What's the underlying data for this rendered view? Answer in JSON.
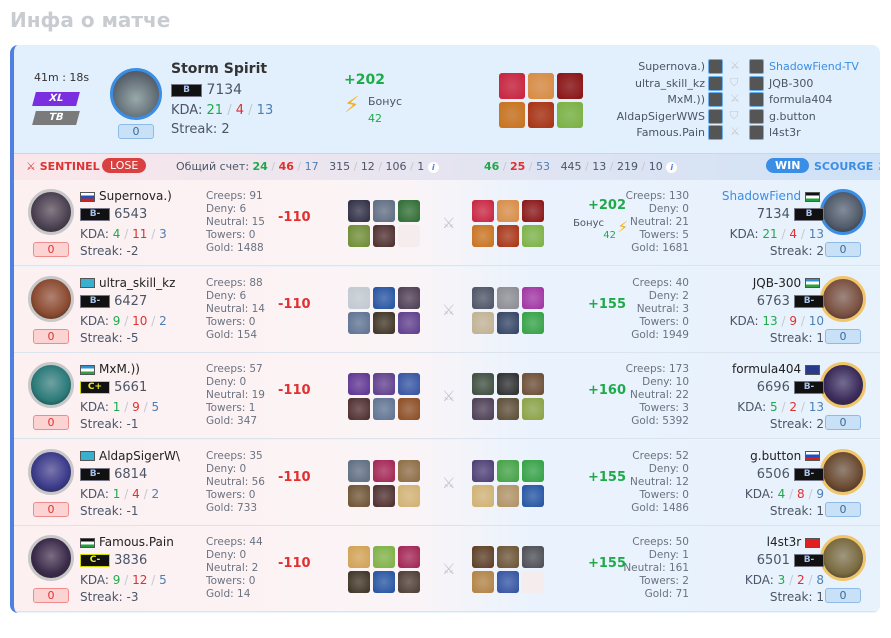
{
  "page_title": "Инфа о матче",
  "match": {
    "duration": "41m : 18s",
    "modes": [
      "XL",
      "TB"
    ],
    "mode_colors": [
      "#7a2ee0",
      "#7a7a7a"
    ]
  },
  "mvp": {
    "hero": "Storm Spirit",
    "rank": "B",
    "rating": "7134",
    "kda": [
      "21",
      "4",
      "13"
    ],
    "kda_label": "KDA:",
    "streak": "Streak: 2",
    "counter": "0",
    "delta": "+202",
    "bonus_label": "Бонус",
    "bonus": "42",
    "items": [
      "#c8203a",
      "#d88a40",
      "#8a1010",
      "#c8701a",
      "#a83010",
      "#7ab040"
    ]
  },
  "lineup": [
    {
      "left": "Supernova.)",
      "right": "ShadowFiend-TV",
      "right_highlight": true,
      "icon": "crossed-swords-icon"
    },
    {
      "left": "ultra_skill_kz",
      "right": "JQB-300",
      "icon": "shield-icon"
    },
    {
      "left": "MxM.))",
      "right": "formula404",
      "icon": "crossed-swords-icon"
    },
    {
      "left": "AldapSigerWWS",
      "right": "g.button",
      "icon": "shield-icon"
    },
    {
      "left": "Famous.Pain",
      "right": "l4st3r",
      "icon": "crossed-swords-icon"
    }
  ],
  "sentinel": {
    "label": "SENTINEL",
    "result": "LOSE",
    "score_label": "Общий счет:",
    "kda": [
      "24",
      "46",
      "17"
    ],
    "extra": [
      "315",
      "12",
      "106",
      "1"
    ]
  },
  "scourge": {
    "label": "SCOURGE",
    "result": "WIN",
    "kda": [
      "46",
      "25",
      "53"
    ],
    "extra": [
      "445",
      "13",
      "219",
      "10"
    ]
  },
  "rows": [
    {
      "l": {
        "name": "Supernova.)",
        "flag": "ru",
        "rank": "B-",
        "rating": "6543",
        "kda": [
          "4",
          "11",
          "3"
        ],
        "streak": "Streak: -2",
        "counter": "0",
        "creeps": "Creeps: 91",
        "deny": "Deny: 6",
        "neutral": "Neutral: 15",
        "towers": "Towers: 0",
        "gold": "Gold: 1488",
        "delta": "-110",
        "items": [
          "#2a2a40",
          "#5a6a80",
          "#2a6a30",
          "#6a8a30",
          "#4a2a2a",
          null
        ],
        "av": "#4a4050"
      },
      "r": {
        "name": "ShadowFiend",
        "flag": "jo",
        "rank": "B",
        "rating": "7134",
        "kda": [
          "21",
          "4",
          "13"
        ],
        "streak": "Streak: 2",
        "counter": "0",
        "creeps": "Creeps: 130",
        "deny": "Deny: 0",
        "neutral": "Neutral: 21",
        "towers": "Towers: 5",
        "gold": "Gold: 1681",
        "delta": "+202",
        "bonus_label": "Бонус",
        "bonus": "42",
        "items": [
          "#c8203a",
          "#d88a40",
          "#8a1010",
          "#c8701a",
          "#a83010",
          "#7ab040"
        ],
        "av": "#505a68",
        "highlight": true
      }
    },
    {
      "l": {
        "name": "ultra_skill_kz",
        "flag": "kz",
        "rank": "B-",
        "rating": "6427",
        "kda": [
          "9",
          "10",
          "2"
        ],
        "streak": "Streak: -5",
        "counter": "0",
        "creeps": "Creeps: 88",
        "deny": "Deny: 6",
        "neutral": "Neutral: 14",
        "towers": "Towers: 0",
        "gold": "Gold: 154",
        "delta": "-110",
        "items": [
          "#c0c8d0",
          "#2050a0",
          "#4a3a50",
          "#5a7090",
          "#3a3020",
          "#5a3a8a"
        ],
        "av": "#8a4a30"
      },
      "r": {
        "name": "JQB-300",
        "flag": "uz",
        "rank": "B-",
        "rating": "6763",
        "kda": [
          "13",
          "9",
          "10"
        ],
        "streak": "Streak: 1",
        "counter": "0",
        "creeps": "Creeps: 40",
        "deny": "Deny: 2",
        "neutral": "Neutral: 3",
        "towers": "Towers: 0",
        "gold": "Gold: 1949",
        "delta": "+155",
        "items": [
          "#4a5060",
          "#8a8a90",
          "#a030a0",
          "#c0b090",
          "#304060",
          "#30a040"
        ],
        "av": "#7a5040"
      }
    },
    {
      "l": {
        "name": "MxM.))",
        "flag": "uz",
        "rank": "C+",
        "rating": "5661",
        "kda": [
          "1",
          "9",
          "5"
        ],
        "streak": "Streak: -1",
        "counter": "0",
        "creeps": "Creeps: 57",
        "deny": "Deny: 0",
        "neutral": "Neutral: 19",
        "towers": "Towers: 1",
        "gold": "Gold: 347",
        "delta": "-110",
        "items": [
          "#5a3090",
          "#5a3a8a",
          "#3050a0",
          "#4a2a2a",
          "#5a7090",
          "#8a4a20"
        ],
        "av": "#2a7a7a"
      },
      "r": {
        "name": "formula404",
        "flag": "gb",
        "rank": "B-",
        "rating": "6696",
        "kda": [
          "5",
          "2",
          "13"
        ],
        "streak": "Streak: 2",
        "counter": "0",
        "creeps": "Creeps: 173",
        "deny": "Deny: 10",
        "neutral": "Neutral: 22",
        "towers": "Towers: 3",
        "gold": "Gold: 5392",
        "delta": "+160",
        "items": [
          "#3a4a3a",
          "#2a2a2a",
          "#6a4a30",
          "#4a3a50",
          "#5a4a30",
          "#8aa040"
        ],
        "av": "#3a2a5a"
      }
    },
    {
      "l": {
        "name": "AldapSigerW\\",
        "flag": "kz",
        "rank": "B-",
        "rating": "6814",
        "kda": [
          "1",
          "4",
          "2"
        ],
        "streak": "Streak: -1",
        "counter": "0",
        "creeps": "Creeps: 35",
        "deny": "Deny: 0",
        "neutral": "Neutral: 56",
        "towers": "Towers: 0",
        "gold": "Gold: 733",
        "delta": "-110",
        "items": [
          "#5a6a80",
          "#a02050",
          "#8a6a40",
          "#6a5030",
          "#4a2a2a",
          "#d0b070"
        ],
        "av": "#3a3a8a"
      },
      "r": {
        "name": "g.button",
        "flag": "ru",
        "rank": "B-",
        "rating": "6506",
        "kda": [
          "4",
          "8",
          "9"
        ],
        "streak": "Streak: 1",
        "counter": "0",
        "creeps": "Creeps: 52",
        "deny": "Deny: 0",
        "neutral": "Neutral: 12",
        "towers": "Towers: 0",
        "gold": "Gold: 1486",
        "delta": "+155",
        "items": [
          "#4a3a70",
          "#40a040",
          "#30a040",
          "#d0b070",
          "#b09060",
          "#2050a0"
        ],
        "av": "#6a4a30"
      }
    },
    {
      "l": {
        "name": "Famous.Pain",
        "flag": "jo",
        "rank": "C-",
        "rating": "3836",
        "kda": [
          "9",
          "12",
          "5"
        ],
        "streak": "Streak: -3",
        "counter": "0",
        "creeps": "Creeps: 44",
        "deny": "Deny: 0",
        "neutral": "Neutral: 2",
        "towers": "Towers: 0",
        "gold": "Gold: 14",
        "delta": "-110",
        "items": [
          "#d0a050",
          "#7ab040",
          "#a02050",
          "#3a3020",
          "#2050a0",
          "#4a3a30"
        ],
        "av": "#3a2a4a"
      },
      "r": {
        "name": "l4st3r",
        "flag": "kg",
        "rank": "B-",
        "rating": "6501",
        "kda": [
          "3",
          "2",
          "8"
        ],
        "streak": "Streak: 1",
        "counter": "0",
        "creeps": "Creeps: 50",
        "deny": "Deny: 1",
        "neutral": "Neutral: 161",
        "towers": "Towers: 2",
        "gold": "Gold: 71",
        "delta": "+155",
        "items": [
          "#5a3a20",
          "#6a5030",
          "#4a4a50",
          "#b08040",
          "#3050a0",
          null
        ],
        "av": "#7a6a40"
      }
    }
  ],
  "flags": {
    "ru": "linear-gradient(#fff 33%,#2050c0 33% 66%,#d02020 66%)",
    "kz": "#3ab0d0",
    "uz": "linear-gradient(#3090d0 33%,#fff 33% 66%,#30a040 66%)",
    "jo": "linear-gradient(#111 33%,#fff 33% 66%,#20a040 66%)",
    "gb": "#2a3a8a",
    "kg": "#e02020"
  }
}
